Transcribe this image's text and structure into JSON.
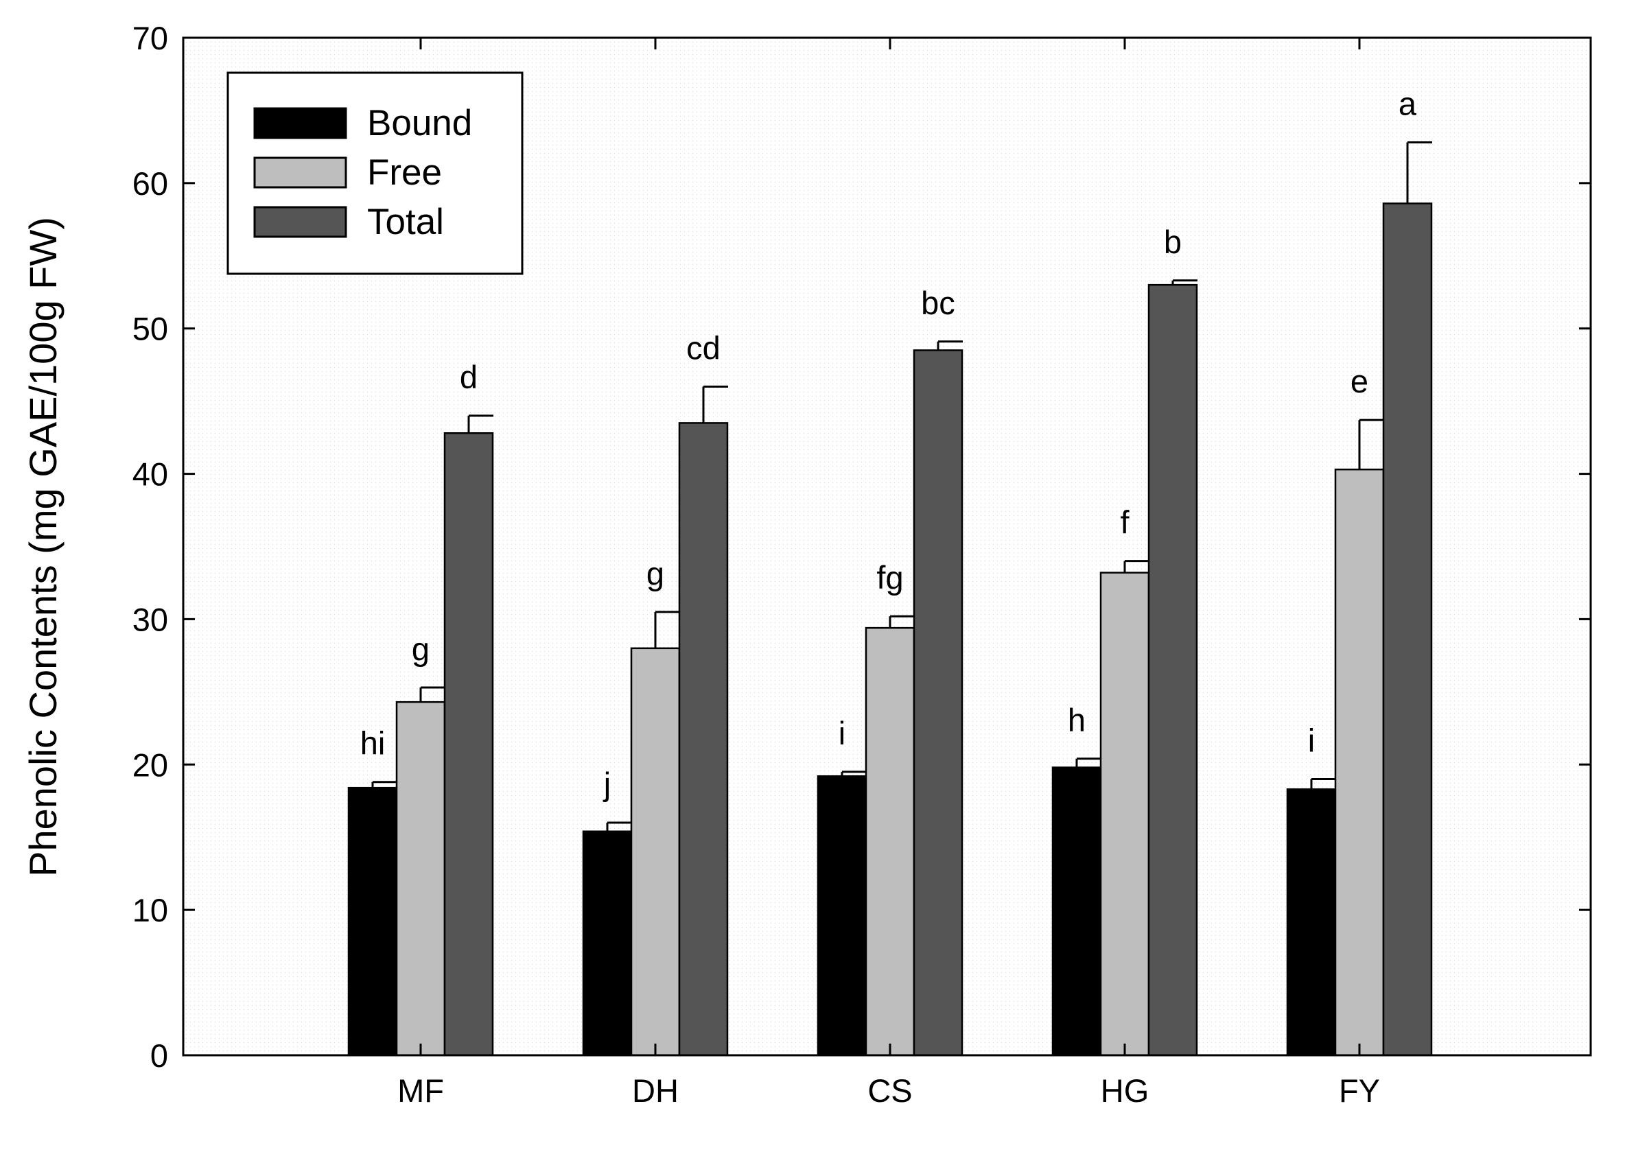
{
  "chart_data": {
    "type": "bar",
    "title": "",
    "xlabel": "",
    "ylabel": "Phenolic Contents (mg GAE/100g FW)",
    "ylim": [
      0,
      70
    ],
    "yticks": [
      0,
      10,
      20,
      30,
      40,
      50,
      60,
      70
    ],
    "grid": false,
    "legend_position": "top-left",
    "categories": [
      "MF",
      "DH",
      "CS",
      "HG",
      "FY"
    ],
    "series": [
      {
        "name": "Bound",
        "color": "#000000",
        "values": [
          18.4,
          15.4,
          19.2,
          19.8,
          18.3
        ],
        "errors": [
          0.4,
          0.6,
          0.3,
          0.6,
          0.7
        ],
        "letters": [
          "hi",
          "j",
          "i",
          "h",
          "i"
        ]
      },
      {
        "name": "Free",
        "color": "#bebebe",
        "values": [
          24.3,
          28.0,
          29.4,
          33.2,
          40.3
        ],
        "errors": [
          1.0,
          2.5,
          0.8,
          0.8,
          3.4
        ],
        "letters": [
          "g",
          "g",
          "fg",
          "f",
          "e"
        ]
      },
      {
        "name": "Total",
        "color": "#555555",
        "values": [
          42.8,
          43.5,
          48.5,
          53.0,
          58.6
        ],
        "errors": [
          1.2,
          2.5,
          0.6,
          0.3,
          4.2
        ],
        "letters": [
          "d",
          "cd",
          "bc",
          "b",
          "a"
        ]
      }
    ]
  }
}
